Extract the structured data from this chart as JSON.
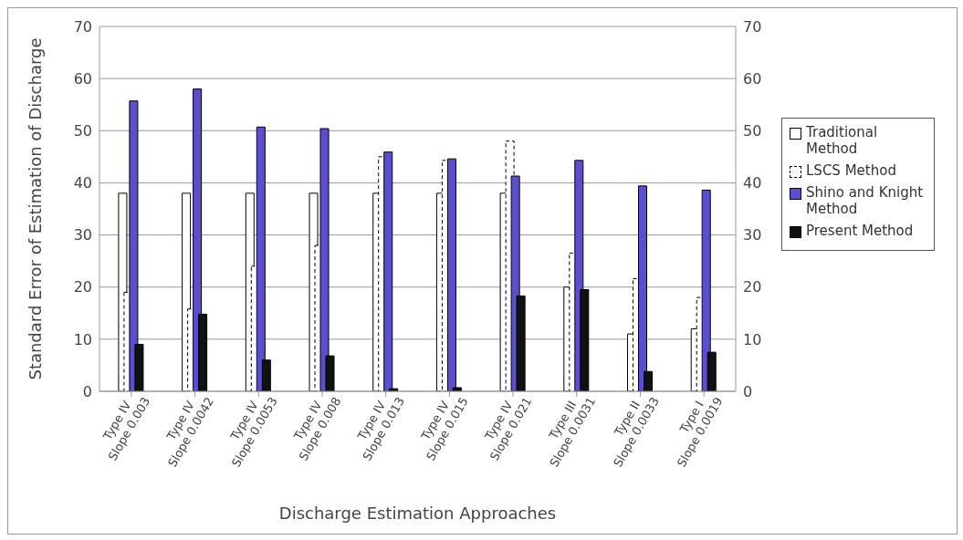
{
  "chart_data": {
    "type": "bar",
    "xlabel": "Discharge Estimation Approaches",
    "ylabel": "Standard Error of Estimation of Discharge",
    "categories": [
      "Type IV Slope 0.003",
      "Type IV Slope 0.0042",
      "Type IV Slope 0.0053",
      "Type IV Slope 0.008",
      "Type IV Slope 0.013",
      "Type IV Slope 0.015",
      "Type IV Slope 0.021",
      "Type III Slope 0.0031",
      "Type II Slope 0.0033",
      "Type I Slope 0.0019"
    ],
    "series": [
      {
        "name": "Traditional Method",
        "color": "#ffffff",
        "values": [
          38,
          38,
          38,
          38,
          38,
          38,
          38,
          20,
          11,
          12
        ]
      },
      {
        "name": "LSCS Method",
        "color": "#ffffff",
        "line_style": "dashed",
        "values": [
          19,
          15.8,
          24,
          28,
          45,
          44.3,
          48,
          26.5,
          21.6,
          18
        ]
      },
      {
        "name": "Shino and Knight Method",
        "color": "#5b4fcf",
        "values": [
          55.7,
          58,
          50.7,
          50.4,
          45.9,
          44.6,
          41.3,
          44.3,
          39.4,
          38.6
        ]
      },
      {
        "name": "Present Method",
        "color": "#111111",
        "values": [
          9,
          14.8,
          6,
          6.8,
          0.5,
          0.7,
          18.3,
          19.5,
          3.8,
          7.5
        ]
      }
    ],
    "ylim": [
      0,
      70
    ],
    "yticks": [
      0,
      10,
      20,
      30,
      40,
      50,
      60,
      70
    ],
    "y2lim": [
      0,
      70
    ],
    "y2ticks": [
      0,
      10,
      20,
      30,
      40,
      50,
      60,
      70
    ],
    "grid": "y",
    "legend": "right"
  }
}
